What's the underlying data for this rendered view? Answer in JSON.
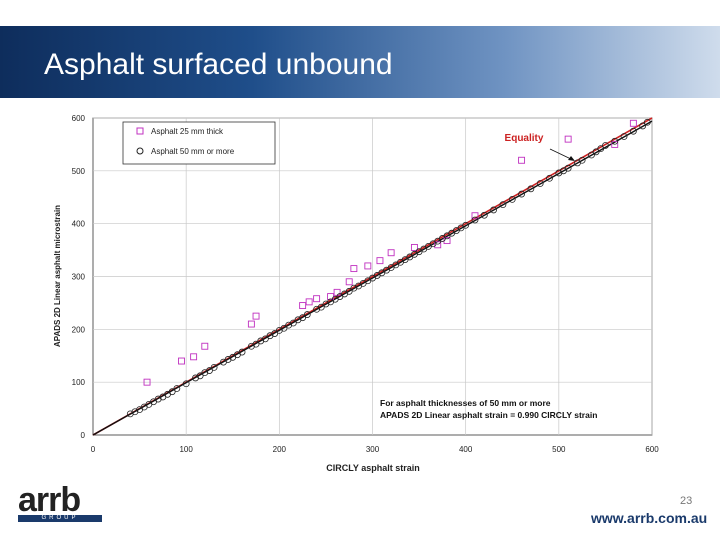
{
  "slide": {
    "title": "Asphalt surfaced unbound",
    "page_number": "23",
    "url": "www.arrb.com.au",
    "logo_text": "arrb",
    "logo_subtext": "GROUP"
  },
  "colors": {
    "banner_dark": "#0e2d5c",
    "series_25": "#c030c0",
    "series_50": "#222222",
    "equality": "#cc2222",
    "fit": "#111111"
  },
  "chart_data": {
    "type": "scatter",
    "title": "",
    "xlabel": "CIRCLY asphalt strain",
    "ylabel": "APADS 2D Linear asphalt microstrain",
    "xlim": [
      0,
      600
    ],
    "ylim": [
      0,
      600
    ],
    "xticks": [
      0,
      100,
      200,
      300,
      400,
      500,
      600
    ],
    "yticks": [
      0,
      100,
      200,
      300,
      400,
      500,
      600
    ],
    "grid": true,
    "legend_position": "top-left",
    "annotation_equality": "Equality",
    "annotation_note_line1": "For asphalt thicknesses of 50 mm or more",
    "annotation_note_line2": "APADS 2D Linear asphalt strain = 0.990 CIRCLY strain",
    "fit_slope": 0.99,
    "series": [
      {
        "name": "Asphalt 25 mm thick",
        "marker": "square",
        "points": [
          [
            58,
            100
          ],
          [
            95,
            140
          ],
          [
            108,
            148
          ],
          [
            120,
            168
          ],
          [
            170,
            210
          ],
          [
            175,
            225
          ],
          [
            225,
            245
          ],
          [
            232,
            252
          ],
          [
            240,
            258
          ],
          [
            255,
            262
          ],
          [
            262,
            270
          ],
          [
            275,
            290
          ],
          [
            280,
            315
          ],
          [
            295,
            320
          ],
          [
            308,
            330
          ],
          [
            320,
            345
          ],
          [
            345,
            355
          ],
          [
            370,
            360
          ],
          [
            380,
            368
          ],
          [
            410,
            415
          ],
          [
            460,
            520
          ],
          [
            510,
            560
          ],
          [
            560,
            550
          ],
          [
            580,
            590
          ]
        ]
      },
      {
        "name": "Asphalt 50 mm or more",
        "marker": "circle",
        "points": [
          [
            40,
            40
          ],
          [
            45,
            44
          ],
          [
            50,
            48
          ],
          [
            55,
            53
          ],
          [
            60,
            58
          ],
          [
            65,
            63
          ],
          [
            70,
            68
          ],
          [
            75,
            72
          ],
          [
            80,
            77
          ],
          [
            85,
            82
          ],
          [
            90,
            88
          ],
          [
            100,
            97
          ],
          [
            110,
            108
          ],
          [
            115,
            112
          ],
          [
            120,
            118
          ],
          [
            125,
            122
          ],
          [
            130,
            128
          ],
          [
            140,
            138
          ],
          [
            145,
            143
          ],
          [
            150,
            147
          ],
          [
            155,
            152
          ],
          [
            160,
            157
          ],
          [
            170,
            168
          ],
          [
            175,
            172
          ],
          [
            180,
            178
          ],
          [
            185,
            182
          ],
          [
            190,
            188
          ],
          [
            195,
            192
          ],
          [
            200,
            198
          ],
          [
            205,
            202
          ],
          [
            210,
            208
          ],
          [
            215,
            212
          ],
          [
            220,
            218
          ],
          [
            225,
            222
          ],
          [
            230,
            228
          ],
          [
            240,
            238
          ],
          [
            245,
            242
          ],
          [
            250,
            248
          ],
          [
            255,
            252
          ],
          [
            260,
            257
          ],
          [
            265,
            262
          ],
          [
            270,
            267
          ],
          [
            275,
            272
          ],
          [
            280,
            278
          ],
          [
            285,
            282
          ],
          [
            290,
            287
          ],
          [
            295,
            292
          ],
          [
            300,
            297
          ],
          [
            305,
            302
          ],
          [
            310,
            307
          ],
          [
            315,
            312
          ],
          [
            320,
            317
          ],
          [
            325,
            322
          ],
          [
            330,
            327
          ],
          [
            335,
            332
          ],
          [
            340,
            337
          ],
          [
            345,
            342
          ],
          [
            350,
            347
          ],
          [
            355,
            352
          ],
          [
            360,
            357
          ],
          [
            365,
            362
          ],
          [
            370,
            367
          ],
          [
            375,
            372
          ],
          [
            380,
            377
          ],
          [
            385,
            382
          ],
          [
            390,
            387
          ],
          [
            395,
            392
          ],
          [
            400,
            397
          ],
          [
            410,
            407
          ],
          [
            420,
            416
          ],
          [
            430,
            426
          ],
          [
            440,
            436
          ],
          [
            450,
            446
          ],
          [
            460,
            456
          ],
          [
            470,
            466
          ],
          [
            480,
            476
          ],
          [
            490,
            486
          ],
          [
            500,
            496
          ],
          [
            505,
            500
          ],
          [
            510,
            505
          ],
          [
            520,
            515
          ],
          [
            525,
            520
          ],
          [
            535,
            530
          ],
          [
            540,
            536
          ],
          [
            545,
            542
          ],
          [
            550,
            548
          ],
          [
            560,
            556
          ],
          [
            570,
            565
          ],
          [
            580,
            575
          ],
          [
            590,
            585
          ],
          [
            595,
            592
          ]
        ]
      }
    ]
  }
}
